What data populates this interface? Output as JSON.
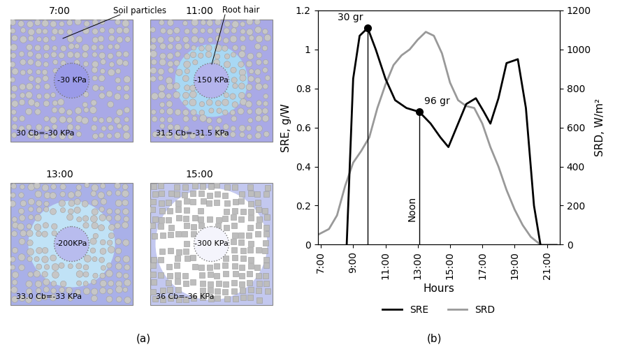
{
  "panel_a": {
    "caption": "(a)",
    "callouts": [
      "Soil particles",
      "Root hair"
    ],
    "panels": [
      {
        "time": "7:00",
        "root_potential": "-30 KPa",
        "bulk": "30 Cb=-30 KPa"
      },
      {
        "time": "11:00",
        "root_potential": "-150 KPa",
        "bulk": "31.5 Cb=-31.5 KPa"
      },
      {
        "time": "13:00",
        "root_potential": "-200KPa",
        "bulk": "33.0 Cb=-33 KPa"
      },
      {
        "time": "15:00",
        "root_potential": "-300 KPa",
        "bulk": "36 Cb=-36 KPa"
      }
    ]
  },
  "chart_data": {
    "type": "line",
    "caption": "(b)",
    "x_label": "Hours",
    "y_label": "SRE, g/W",
    "y2_label": "SRD, W/m²",
    "xlim": [
      6.8,
      21.8
    ],
    "xticks": [
      {
        "value": 7,
        "label": "7:00"
      },
      {
        "value": 9,
        "label": "9:00"
      },
      {
        "value": 11,
        "label": "11:00"
      },
      {
        "value": 13,
        "label": "13:00"
      },
      {
        "value": 15,
        "label": "15:00"
      },
      {
        "value": 17,
        "label": "17:00"
      },
      {
        "value": 19,
        "label": "19:00"
      },
      {
        "value": 21,
        "label": "21:00"
      }
    ],
    "ylim": [
      0,
      1.2
    ],
    "yticks": [
      0,
      0.2,
      0.4,
      0.6,
      0.8,
      1,
      1.2
    ],
    "y2lim": [
      0,
      1200
    ],
    "y2ticks": [
      0,
      200,
      400,
      600,
      800,
      1000,
      1200
    ],
    "legend": "bottom",
    "grid": false,
    "series": [
      {
        "name": "SRE",
        "color": "#000000",
        "x": [
          8.6,
          9.0,
          9.4,
          9.9,
          10.4,
          11.0,
          11.6,
          12.3,
          13.1,
          13.8,
          14.4,
          14.9,
          15.4,
          16.0,
          16.6,
          17.1,
          17.5,
          18.0,
          18.5,
          19.2,
          19.7,
          20.2,
          20.6
        ],
        "values": [
          0,
          0.85,
          1.07,
          1.11,
          1.0,
          0.85,
          0.74,
          0.7,
          0.68,
          0.62,
          0.55,
          0.5,
          0.6,
          0.72,
          0.75,
          0.68,
          0.62,
          0.75,
          0.93,
          0.95,
          0.7,
          0.2,
          0
        ]
      },
      {
        "name": "SRD",
        "color": "#999999",
        "axis": "y2",
        "x": [
          6.8,
          7.5,
          8.0,
          8.5,
          9.0,
          9.5,
          10.0,
          10.5,
          11.0,
          11.5,
          12.0,
          12.5,
          13.0,
          13.5,
          14.0,
          14.5,
          15.0,
          15.5,
          16.0,
          16.5,
          17.0,
          17.5,
          18.0,
          18.5,
          19.0,
          19.5,
          20.0,
          20.6,
          21.6
        ],
        "values": [
          50,
          80,
          150,
          300,
          420,
          480,
          550,
          700,
          820,
          920,
          970,
          1000,
          1050,
          1090,
          1070,
          980,
          830,
          740,
          710,
          700,
          620,
          500,
          400,
          280,
          180,
          100,
          40,
          0,
          0
        ]
      }
    ],
    "points": [
      {
        "x": 9.9,
        "y": 1.11,
        "label": "30 gr"
      },
      {
        "x": 13.1,
        "y": 0.68,
        "label": "96 gr"
      }
    ],
    "vline_label": {
      "x": 13.1,
      "text": "Noon"
    }
  }
}
